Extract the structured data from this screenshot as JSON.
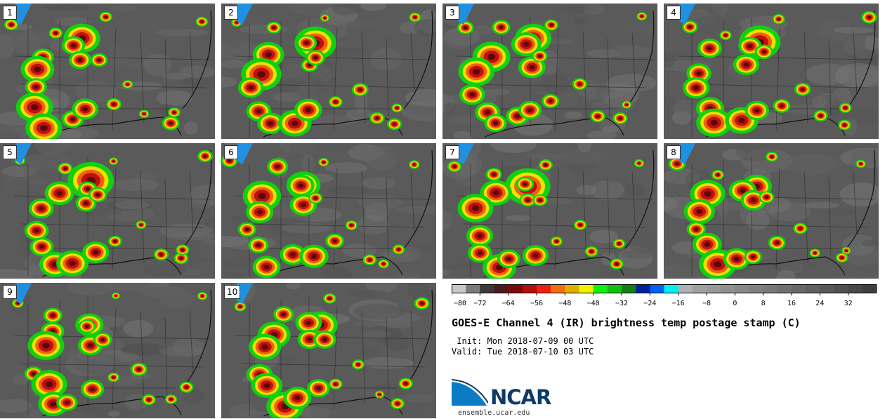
{
  "panels": [
    {
      "label": "1"
    },
    {
      "label": "2"
    },
    {
      "label": "3"
    },
    {
      "label": "4"
    },
    {
      "label": "5"
    },
    {
      "label": "6"
    },
    {
      "label": "7"
    },
    {
      "label": "8"
    },
    {
      "label": "9"
    },
    {
      "label": "10"
    }
  ],
  "chart_data": {
    "type": "heatmap",
    "title": "GOES-E Channel 4 (IR) brightness temp postage stamp (C)",
    "colorbar": {
      "min": -80,
      "max": 40,
      "step": 4,
      "tick_labels": [
        "−80",
        "−72",
        "−64",
        "−56",
        "−48",
        "−40",
        "−32",
        "−24",
        "−16",
        "−8",
        "0",
        "8",
        "16",
        "24",
        "32"
      ],
      "colors": [
        "#c8c8c8",
        "#7a7a7a",
        "#3a3a3a",
        "#4a1a1a",
        "#7a0a0a",
        "#b01010",
        "#f02010",
        "#f07010",
        "#e0b000",
        "#f0f000",
        "#10f010",
        "#10c010",
        "#108010",
        "#0020a0",
        "#0060f0",
        "#00f0f0",
        "#b0b0b0",
        "#a0a0a0",
        "#989898",
        "#909090",
        "#888888",
        "#808080",
        "#787878",
        "#707070",
        "#686868",
        "#606060",
        "#585858",
        "#505050",
        "#484848",
        "#404040"
      ]
    },
    "members": 10
  },
  "info": {
    "init": " Init: Mon 2018-07-09 00 UTC",
    "valid": "Valid: Tue 2018-07-10 03 UTC"
  },
  "logo": {
    "name": "NCAR",
    "url": "ensemble.ucar.edu"
  }
}
